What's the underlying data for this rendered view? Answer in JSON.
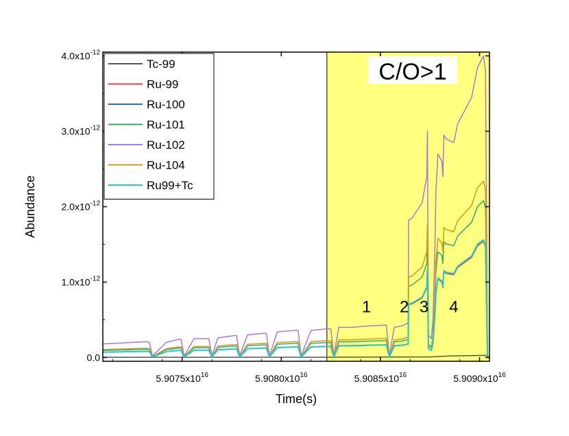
{
  "chart_data": {
    "type": "line",
    "xlabel": "Time(s)",
    "ylabel": "Abundance",
    "xlim": [
      5.9071e+16,
      5.90905e+16
    ],
    "ylim": [
      -5e-14,
      4.05e-12
    ],
    "x_ticks": [
      {
        "value": 5.9075e+16,
        "mantissa": "5.9075x10",
        "exp": "16"
      },
      {
        "value": 5.908e+16,
        "mantissa": "5.9080x10",
        "exp": "16"
      },
      {
        "value": 5.9085e+16,
        "mantissa": "5.9085x10",
        "exp": "16"
      },
      {
        "value": 5.909e+16,
        "mantissa": "5.9090x10",
        "exp": "16"
      }
    ],
    "y_ticks": [
      {
        "value": 0,
        "mantissa": "0.0",
        "exp": ""
      },
      {
        "value": 1e-12,
        "mantissa": "1.0x10",
        "exp": "-12"
      },
      {
        "value": 2e-12,
        "mantissa": "2.0x10",
        "exp": "-12"
      },
      {
        "value": 3e-12,
        "mantissa": "3.0x10",
        "exp": "-12"
      },
      {
        "value": 4e-12,
        "mantissa": "4.0x10",
        "exp": "-12"
      }
    ],
    "highlight_region": {
      "x_start": 5.90823e+16,
      "x_end": 5.90905e+16,
      "color": "#ffff80",
      "label": "C/O>1"
    },
    "region_labels": [
      {
        "text": "1",
        "x": 5.90843e+16,
        "y": 6e-13
      },
      {
        "text": "2",
        "x": 5.90862e+16,
        "y": 6e-13
      },
      {
        "text": "3",
        "x": 5.90872e+16,
        "y": 6e-13
      },
      {
        "text": "4",
        "x": 5.90887e+16,
        "y": 6e-13
      }
    ],
    "legend_position": "top-left",
    "series": [
      {
        "name": "Tc-99",
        "color": "#555555",
        "scale": 0.0,
        "x": [
          5.9071e+16,
          5.90823e+16,
          5.90875e+16,
          5.90885e+16,
          5.90903e+16,
          5.90905e+16
        ],
        "y": [
          4e-15,
          4e-15,
          8e-15,
          2e-14,
          2.8e-14,
          0.0
        ]
      },
      {
        "name": "Ru-99",
        "color": "#e8403a",
        "scale": 0.385
      },
      {
        "name": "Ru-100",
        "color": "#1f6fd0",
        "scale": 0.39
      },
      {
        "name": "Ru-101",
        "color": "#3aa866",
        "scale": 0.52
      },
      {
        "name": "Ru-102",
        "color": "#a878d8",
        "scale": 1.0
      },
      {
        "name": "Ru-104",
        "color": "#cc9a1a",
        "scale": 0.585
      },
      {
        "name": "Ru99+Tc",
        "color": "#22c8c8",
        "scale": 0.39
      }
    ],
    "base_profile": {
      "x": [
        5.9071e+16,
        5.90732e+16,
        5.907335e+16,
        5.90735e+16,
        5.90742e+16,
        5.90748e+16,
        5.907495e+16,
        5.90751e+16,
        5.90756e+16,
        5.90762e+16,
        5.907635e+16,
        5.90765e+16,
        5.90768e+16,
        5.90776e+16,
        5.907775e+16,
        5.90779e+16,
        5.90783e+16,
        5.90791e+16,
        5.907925e+16,
        5.90794e+16,
        5.90798e+16,
        5.90807e+16,
        5.908085e+16,
        5.9081e+16,
        5.90815e+16,
        5.90823e+16,
        5.90825e+16,
        5.908265e+16,
        5.90829e+16,
        5.90835e+16,
        5.90845e+16,
        5.90852e+16,
        5.90853e+16,
        5.908545e+16,
        5.90857e+16,
        5.90861e+16,
        5.90864e+16,
        5.908642e+16,
        5.90866e+16,
        5.90871e+16,
        5.908734e+16,
        5.908737e+16,
        5.908742e+16,
        5.908757e+16,
        5.908765e+16,
        5.908775e+16,
        5.90878e+16,
        5.90879e+16,
        5.90881e+16,
        5.908815e+16,
        5.90882e+16,
        5.90883e+16,
        5.90887e+16,
        5.90889e+16,
        5.90896e+16,
        5.90899e+16,
        5.90902e+16,
        5.90903e+16,
        5.90904e+16
      ],
      "y": [
        1.8e-13,
        2.1e-13,
        2e-13,
        2e-14,
        2e-13,
        2.4e-13,
        2.4e-13,
        2e-14,
        2.5e-13,
        2.5e-13,
        2.5e-13,
        2e-14,
        2.6e-13,
        2.9e-13,
        2.9e-13,
        2e-14,
        3e-13,
        3.2e-13,
        3.2e-13,
        2e-14,
        3.4e-13,
        3.6e-13,
        3.6e-13,
        2e-14,
        3.6e-13,
        3.8e-13,
        3.8e-13,
        2e-14,
        4e-13,
        4e-13,
        4.2e-13,
        4.3e-13,
        4.3e-13,
        2e-14,
        4e-13,
        4.2e-13,
        4.6e-13,
        1.82e-12,
        1.85e-12,
        2.05e-12,
        2.4e-12,
        3e-12,
        3e-13,
        2.5e-13,
        5e-13,
        1.5e-12,
        2.2e-12,
        2.7e-12,
        2.6e-12,
        2.4e-12,
        2.95e-12,
        2.9e-12,
        2.85e-12,
        3.1e-12,
        3.45e-12,
        3.85e-12,
        4e-12,
        3.8e-12,
        5e-14
      ]
    }
  }
}
